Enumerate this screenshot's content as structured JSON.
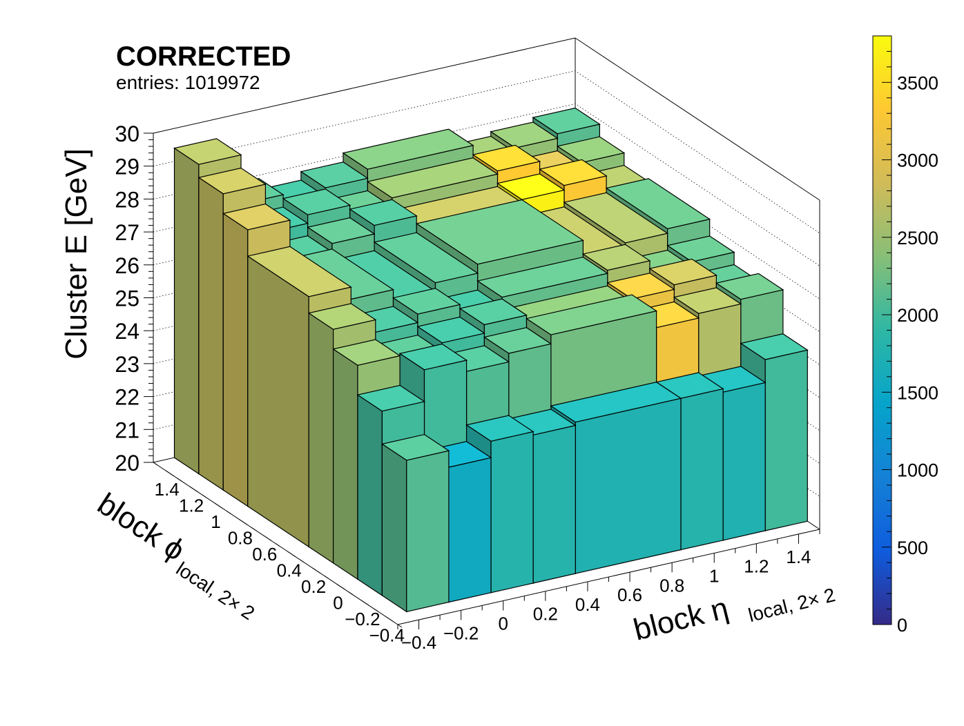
{
  "header": {
    "title": "CORRECTED",
    "entries_label": "entries: 1019972"
  },
  "chart_data": {
    "type": "lego3d",
    "x_axis": {
      "label_main": "block η",
      "label_sub": "local, 2× 2",
      "ticks": [
        "−0.4",
        "−0.2",
        "0",
        "0.2",
        "0.4",
        "0.6",
        "0.8",
        "1",
        "1.2",
        "1.4"
      ],
      "range": [
        -0.5,
        1.5
      ]
    },
    "y_axis": {
      "label_main": "block ϕ",
      "label_sub": "local, 2× 2",
      "ticks": [
        "−0.4",
        "−0.2",
        "0",
        "0.2",
        "0.4",
        "0.6",
        "0.8",
        "1",
        "1.2",
        "1.4"
      ],
      "range": [
        -0.5,
        1.5
      ]
    },
    "z_axis": {
      "label": "Cluster E  [GeV]",
      "ticks": [
        "20",
        "21",
        "22",
        "23",
        "24",
        "25",
        "26",
        "27",
        "28",
        "29",
        "30"
      ],
      "range": [
        20,
        30
      ]
    },
    "colorbar": {
      "ticks": [
        "0",
        "500",
        "1000",
        "1500",
        "2000",
        "2500",
        "3000",
        "3500"
      ],
      "range": [
        0,
        3800
      ],
      "palette": [
        "#352a87",
        "#0f5cdd",
        "#1481d6",
        "#06a4ca",
        "#2eb7a4",
        "#87bf77",
        "#d1bb59",
        "#fec832",
        "#f9fb0e"
      ]
    },
    "eta_bins": [
      -0.4,
      -0.2,
      0.0,
      0.2,
      0.4,
      0.9,
      1.1,
      1.3,
      1.5
    ],
    "phi_bins": [
      -0.4,
      -0.2,
      0.0,
      0.2,
      0.4,
      0.9,
      1.1,
      1.3,
      1.5
    ],
    "front_row_counts": [
      2100,
      1550,
      1800,
      1800,
      1750,
      1800,
      1750,
      2000
    ],
    "side_col_counts": [
      2100,
      2000,
      2450,
      2550,
      2700,
      2800,
      2750,
      2650
    ],
    "notes": "Entries: cluster-energy-corrected histogram; bar height in Cluster E, color by counts"
  }
}
